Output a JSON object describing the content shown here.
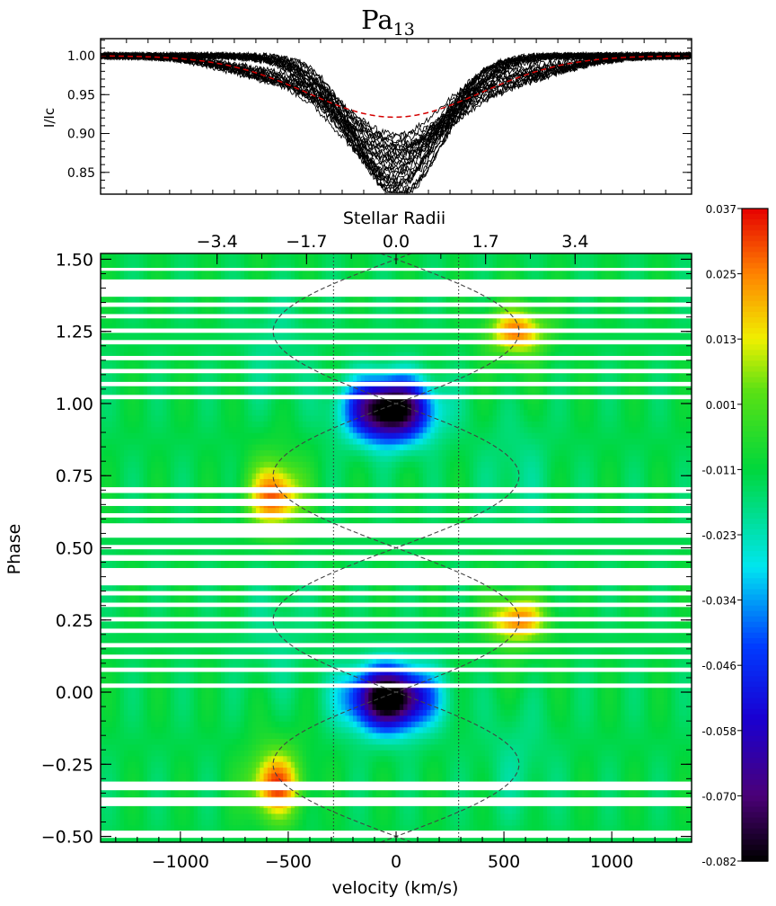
{
  "chart_data": [
    {
      "type": "line",
      "title": "Pa",
      "title_subscript": "13",
      "ylabel": "I/Ic",
      "xlim": [
        -1370,
        1370
      ],
      "ylim": [
        0.822,
        1.022
      ],
      "yticks": [
        0.85,
        0.9,
        0.95,
        1.0
      ],
      "ytick_labels": [
        "0.85",
        "0.90",
        "0.95",
        "1.00"
      ],
      "series": [
        {
          "name": "observed spectra",
          "color": "#000000",
          "count": 30,
          "profile": {
            "continuum": 1.0,
            "center_velocity": -10,
            "depth_min": 0.1,
            "depth_max": 0.18,
            "width_kms": 230
          }
        },
        {
          "name": "mean profile",
          "color": "#d40000",
          "style": "dashed",
          "profile": {
            "continuum": 1.0,
            "center_velocity": -10,
            "depth": 0.079,
            "width_kms": 400
          }
        }
      ]
    },
    {
      "type": "heatmap",
      "xlabel": "velocity (km/s)",
      "ylabel": "Phase",
      "top_axis_label": "Stellar Radii",
      "xlim": [
        -1370,
        1370
      ],
      "ylim": [
        -0.52,
        1.52
      ],
      "xticks": [
        -1000,
        -500,
        0,
        500,
        1000
      ],
      "xtick_labels": [
        "−1000",
        "−500",
        "0",
        "500",
        "1000"
      ],
      "top_ticks": [
        -3.4,
        -1.7,
        0.0,
        1.7,
        3.4
      ],
      "top_tick_labels": [
        "−3.4",
        "−1.7",
        "0.0",
        "1.7",
        "3.4"
      ],
      "top_ticks_kms": [
        -830,
        -415,
        0,
        415,
        830
      ],
      "yticks": [
        -0.5,
        -0.25,
        0.0,
        0.25,
        0.5,
        0.75,
        1.0,
        1.25,
        1.5
      ],
      "ytick_labels": [
        "−0.50",
        "−0.25",
        "0.00",
        "0.25",
        "0.50",
        "0.75",
        "1.00",
        "1.25",
        "1.50"
      ],
      "vlines_kms": [
        -290,
        290
      ],
      "sine_curves": [
        {
          "amplitude_kms": 570,
          "center_kms": 0,
          "phase_offset": 0.0
        },
        {
          "amplitude_kms": 570,
          "center_kms": 0,
          "phase_offset": 0.5
        }
      ],
      "gaps": [
        [
          -0.505,
          -0.48
        ],
        [
          -0.395,
          -0.365
        ],
        [
          -0.34,
          -0.31
        ],
        [
          0.015,
          0.03
        ],
        [
          0.07,
          0.085
        ],
        [
          0.115,
          0.13
        ],
        [
          0.155,
          0.17
        ],
        [
          0.205,
          0.22
        ],
        [
          0.245,
          0.26
        ],
        [
          0.295,
          0.31
        ],
        [
          0.335,
          0.35
        ],
        [
          0.37,
          0.43
        ],
        [
          0.455,
          0.475
        ],
        [
          0.495,
          0.51
        ],
        [
          0.535,
          0.585
        ],
        [
          0.605,
          0.62
        ],
        [
          0.645,
          0.67
        ],
        [
          0.69,
          0.71
        ],
        [
          1.015,
          1.03
        ],
        [
          1.06,
          1.075
        ],
        [
          1.105,
          1.12
        ],
        [
          1.15,
          1.165
        ],
        [
          1.205,
          1.22
        ],
        [
          1.245,
          1.26
        ],
        [
          1.295,
          1.31
        ],
        [
          1.335,
          1.35
        ],
        [
          1.37,
          1.43
        ],
        [
          1.46,
          1.47
        ]
      ],
      "features": [
        {
          "name": "central absorption",
          "v_kms": -30,
          "phase": 0.98,
          "amplitude": -0.082,
          "sigma_v": 130,
          "sigma_phase": 0.075
        },
        {
          "name": "central absorption repeat",
          "v_kms": -30,
          "phase": -0.02,
          "amplitude": -0.082,
          "sigma_v": 130,
          "sigma_phase": 0.075
        },
        {
          "name": "blue emission",
          "v_kms": -560,
          "phase": 0.68,
          "amplitude": 0.037,
          "sigma_v": 80,
          "sigma_phase": 0.075
        },
        {
          "name": "blue emission repeat",
          "v_kms": -560,
          "phase": -0.32,
          "amplitude": 0.037,
          "sigma_v": 80,
          "sigma_phase": 0.075
        },
        {
          "name": "red emission",
          "v_kms": 560,
          "phase": 1.25,
          "amplitude": 0.032,
          "sigma_v": 90,
          "sigma_phase": 0.05
        },
        {
          "name": "red emission repeat",
          "v_kms": 560,
          "phase": 0.25,
          "amplitude": 0.032,
          "sigma_v": 90,
          "sigma_phase": 0.05
        }
      ],
      "colorbar": {
        "range": [
          -0.082,
          0.037
        ],
        "tick_labels": [
          "0.037",
          "0.025",
          "0.013",
          "0.001",
          "-0.011",
          "-0.023",
          "-0.034",
          "-0.046",
          "-0.058",
          "-0.070",
          "-0.082"
        ],
        "colormap": "rainbow (black-violet-blue-cyan-green-yellow-orange-red)"
      }
    }
  ]
}
